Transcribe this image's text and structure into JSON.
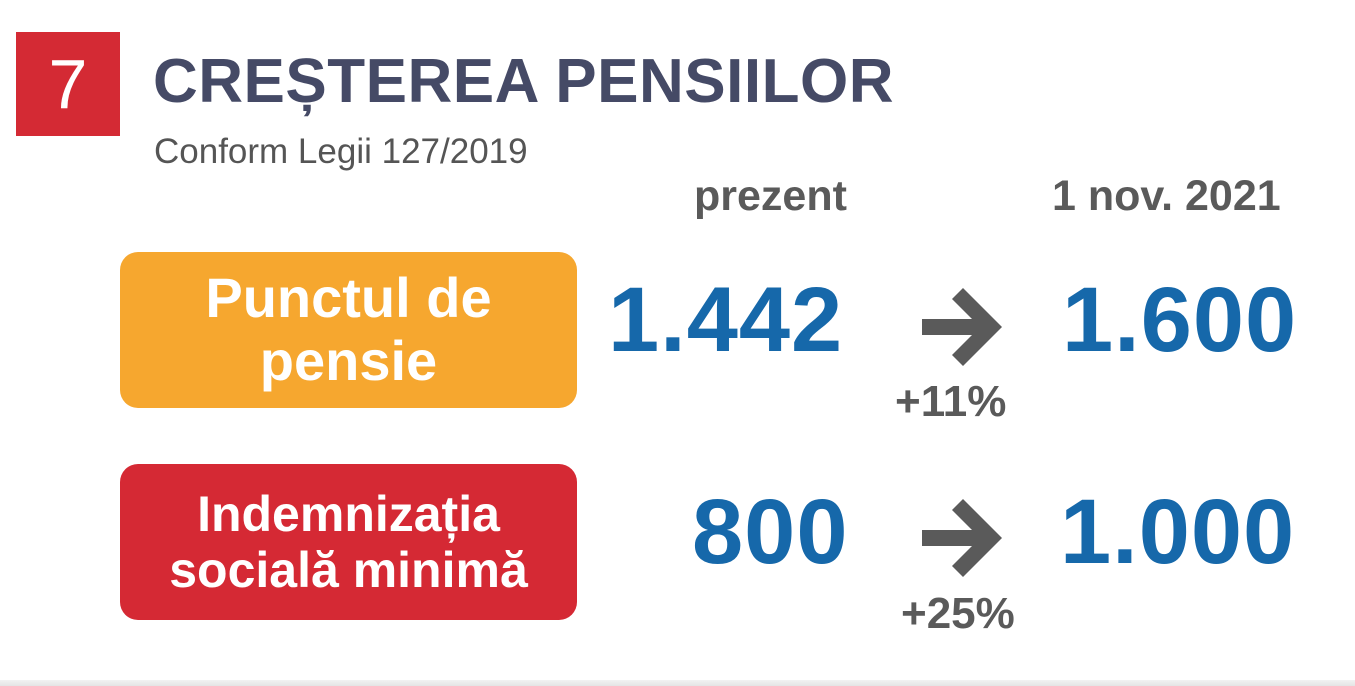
{
  "section_number": "7",
  "title": "CREȘTEREA PENSIILOR",
  "subtitle": "Conform Legii 127/2019",
  "columns": {
    "current": "prezent",
    "future": "1 nov. 2021"
  },
  "rows": [
    {
      "label_line1": "Punctul de",
      "label_line2": "pensie",
      "label_color": "#f6a72f",
      "current_value": "1.442",
      "new_value": "1.600",
      "increase": "+11%"
    },
    {
      "label_line1": "Indemnizația",
      "label_line2": "socială minimă",
      "label_color": "#d52934",
      "current_value": "800",
      "new_value": "1.000",
      "increase": "+25%"
    }
  ],
  "colors": {
    "badge": "#d42a34",
    "title": "#454a66",
    "values": "#1668aa",
    "arrow": "#5a5a5a"
  },
  "icons": {
    "arrow": "arrow-right-icon"
  }
}
